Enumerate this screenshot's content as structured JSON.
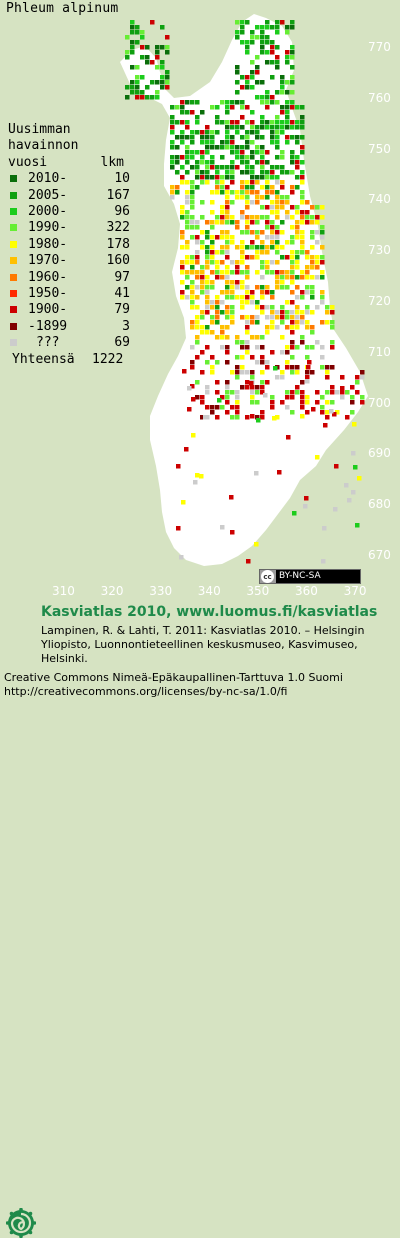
{
  "title": "Phleum alpinum",
  "colors": {
    "background": "#d6e3c2",
    "land": "#ffffff",
    "grid_labels": "#ffffff",
    "brand": "#1f8a4a"
  },
  "legend": {
    "header_lines": [
      "Uusimman",
      "havainnon",
      "vuosi"
    ],
    "count_header": "lkm",
    "rows": [
      {
        "label": "2010-",
        "count": "10",
        "color": "#0a6e0a"
      },
      {
        "label": "2005-",
        "count": "167",
        "color": "#0fa010"
      },
      {
        "label": "2000-",
        "count": "96",
        "color": "#1ccc1c"
      },
      {
        "label": "1990-",
        "count": "322",
        "color": "#66ee33"
      },
      {
        "label": "1980-",
        "count": "178",
        "color": "#ffff00"
      },
      {
        "label": "1970-",
        "count": "160",
        "color": "#ffc000"
      },
      {
        "label": "1960-",
        "count": "97",
        "color": "#ff7a00"
      },
      {
        "label": "1950-",
        "count": "41",
        "color": "#ff2a00"
      },
      {
        "label": "1900-",
        "count": "79",
        "color": "#cc0000"
      },
      {
        "label": "-1899",
        "count": "3",
        "color": "#800000"
      },
      {
        "label": "???",
        "count": "69",
        "color": "#cccccc"
      }
    ],
    "total_label": "Yhteensä",
    "total_count": "1222"
  },
  "axes": {
    "y_ticks": [
      "770",
      "760",
      "750",
      "740",
      "730",
      "720",
      "710",
      "700",
      "690",
      "680",
      "670"
    ],
    "x_ticks": [
      "310",
      "320",
      "330",
      "340",
      "350",
      "360",
      "370"
    ]
  },
  "license_badge": {
    "icon": "cc-icon",
    "text": "BY-NC-SA"
  },
  "footer": {
    "brand_line": "Kasviatlas 2010, www.luomus.fi/kasviatlas",
    "citation": "Lampinen, R. & Lahti, T. 2011: Kasviatlas 2010. – Helsingin Yliopisto, Luonnontieteellinen keskusmuseo, Kasvimuseo, Helsinki.",
    "license_line1": "Creative Commons Nimeä-Epäkaupallinen-Tarttuva 1.0 Suomi",
    "license_line2": "http://creativecommons.org/licenses/by-nc-sa/1.0/fi"
  },
  "logo_icon": "luomus-spiral-icon"
}
